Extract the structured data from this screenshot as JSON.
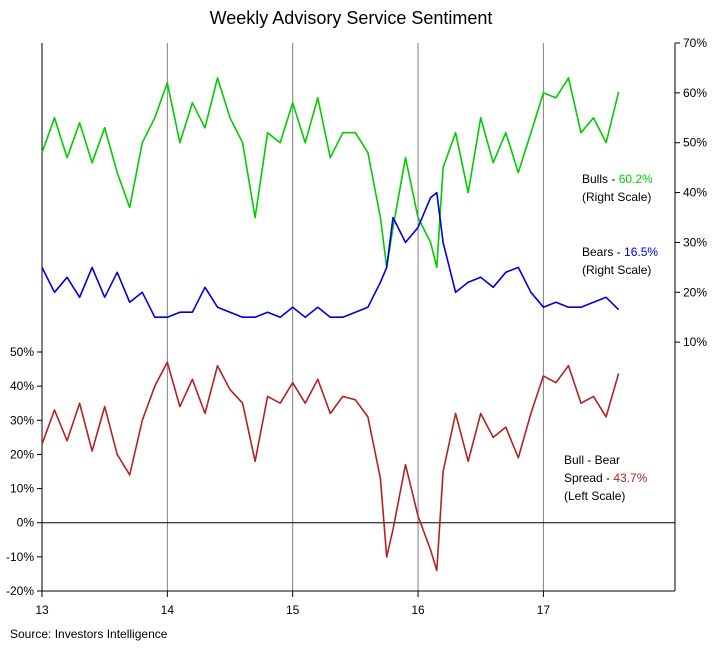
{
  "chart_data": {
    "type": "line",
    "title": "Weekly Advisory Service Sentiment",
    "source": "Source: Investors Intelligence",
    "x_tick_labels": [
      "13",
      "14",
      "15",
      "16",
      "17"
    ],
    "x_range": [
      2013,
      2018.05
    ],
    "right_axis": {
      "ticks": [
        "10%",
        "20%",
        "30%",
        "40%",
        "50%",
        "60%",
        "70%"
      ],
      "ylim": [
        0,
        70
      ]
    },
    "left_axis": {
      "ticks": [
        "-20%",
        "-10%",
        "0%",
        "10%",
        "20%",
        "30%",
        "40%",
        "50%"
      ],
      "ylim": [
        -20,
        50
      ]
    },
    "colors": {
      "bulls": "#00cc00",
      "bears": "#0000dd",
      "spread": "#b22222",
      "grid": "#808080",
      "axis": "#000000"
    },
    "annotations": {
      "bulls_prefix": "Bulls - ",
      "bulls_value": "60.2%",
      "bulls_scale": "(Right Scale)",
      "bears_prefix": "Bears - ",
      "bears_value": "16.5%",
      "bears_scale": "(Right Scale)",
      "spread_line1": "Bull - Bear",
      "spread_prefix": "Spread - ",
      "spread_value": "43.7%",
      "spread_scale": "(Left Scale)"
    },
    "series": [
      {
        "name": "Bulls",
        "axis": "right",
        "x": [
          2013.0,
          2013.1,
          2013.2,
          2013.3,
          2013.4,
          2013.5,
          2013.6,
          2013.7,
          2013.8,
          2013.9,
          2014.0,
          2014.1,
          2014.2,
          2014.3,
          2014.4,
          2014.5,
          2014.6,
          2014.7,
          2014.8,
          2014.9,
          2015.0,
          2015.1,
          2015.2,
          2015.3,
          2015.4,
          2015.5,
          2015.6,
          2015.7,
          2015.75,
          2015.8,
          2015.9,
          2016.0,
          2016.1,
          2016.15,
          2016.2,
          2016.3,
          2016.4,
          2016.5,
          2016.6,
          2016.7,
          2016.8,
          2016.9,
          2017.0,
          2017.1,
          2017.2,
          2017.3,
          2017.4,
          2017.5,
          2017.6
        ],
        "values": [
          48,
          55,
          47,
          54,
          46,
          53,
          44,
          37,
          50,
          55,
          62,
          50,
          58,
          53,
          63,
          55,
          50,
          35,
          52,
          50,
          58,
          50,
          59,
          47,
          52,
          52,
          48,
          35,
          25,
          33,
          47,
          35,
          30,
          25,
          45,
          52,
          40,
          55,
          46,
          52,
          44,
          52,
          60,
          59,
          63,
          52,
          55,
          50,
          60.2
        ]
      },
      {
        "name": "Bears",
        "axis": "right",
        "x": [
          2013.0,
          2013.1,
          2013.2,
          2013.3,
          2013.4,
          2013.5,
          2013.6,
          2013.7,
          2013.8,
          2013.9,
          2014.0,
          2014.1,
          2014.2,
          2014.3,
          2014.4,
          2014.5,
          2014.6,
          2014.7,
          2014.8,
          2014.9,
          2015.0,
          2015.1,
          2015.2,
          2015.3,
          2015.4,
          2015.5,
          2015.6,
          2015.7,
          2015.75,
          2015.8,
          2015.9,
          2016.0,
          2016.1,
          2016.15,
          2016.2,
          2016.3,
          2016.4,
          2016.5,
          2016.6,
          2016.7,
          2016.8,
          2016.9,
          2017.0,
          2017.1,
          2017.2,
          2017.3,
          2017.4,
          2017.5,
          2017.6
        ],
        "values": [
          25,
          20,
          23,
          19,
          25,
          19,
          24,
          18,
          20,
          15,
          15,
          16,
          16,
          21,
          17,
          16,
          15,
          15,
          16,
          15,
          17,
          15,
          17,
          15,
          15,
          16,
          17,
          22,
          25,
          35,
          30,
          33,
          39,
          40,
          30,
          20,
          22,
          23,
          21,
          24,
          25,
          20,
          17,
          18,
          17,
          17,
          18,
          19,
          16.5
        ]
      },
      {
        "name": "Bull - Bear Spread",
        "axis": "left",
        "x": [
          2013.0,
          2013.1,
          2013.2,
          2013.3,
          2013.4,
          2013.5,
          2013.6,
          2013.7,
          2013.8,
          2013.9,
          2014.0,
          2014.1,
          2014.2,
          2014.3,
          2014.4,
          2014.5,
          2014.6,
          2014.7,
          2014.8,
          2014.9,
          2015.0,
          2015.1,
          2015.2,
          2015.3,
          2015.4,
          2015.5,
          2015.6,
          2015.7,
          2015.75,
          2015.8,
          2015.9,
          2016.0,
          2016.1,
          2016.15,
          2016.2,
          2016.3,
          2016.4,
          2016.5,
          2016.6,
          2016.7,
          2016.8,
          2016.9,
          2017.0,
          2017.1,
          2017.2,
          2017.3,
          2017.4,
          2017.5,
          2017.6
        ],
        "values": [
          23,
          33,
          24,
          35,
          21,
          34,
          20,
          14,
          30,
          40,
          47,
          34,
          42,
          32,
          46,
          39,
          35,
          18,
          37,
          35,
          41,
          35,
          42,
          32,
          37,
          36,
          31,
          13,
          -10,
          -2,
          17,
          2,
          -8,
          -14,
          15,
          32,
          18,
          32,
          25,
          28,
          19,
          32,
          43,
          41,
          46,
          35,
          37,
          31,
          43.7
        ]
      }
    ]
  }
}
